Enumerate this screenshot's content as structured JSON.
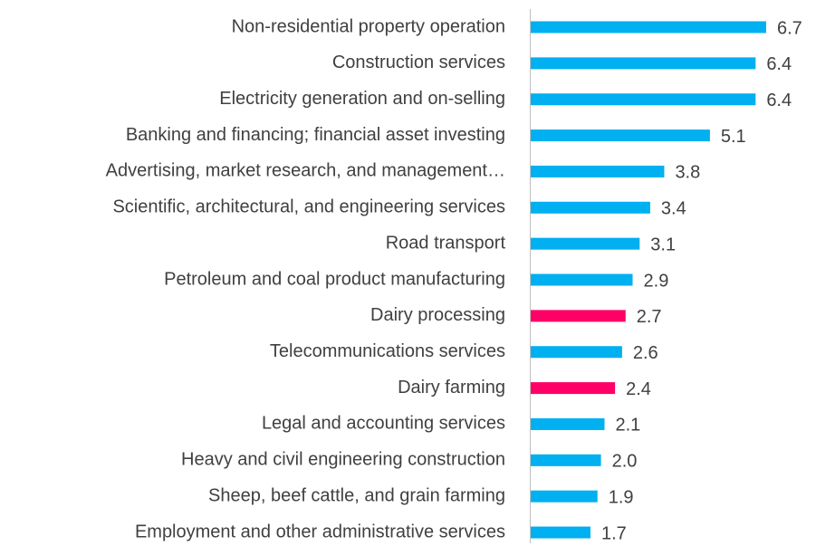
{
  "chart_data": {
    "type": "hbar",
    "categories": [
      "Non-residential property operation",
      "Construction services",
      "Electricity generation and on-selling",
      "Banking and financing; financial asset investing",
      "Advertising, market research, and management…",
      "Scientific, architectural, and engineering services",
      "Road transport",
      "Petroleum and coal product manufacturing",
      "Dairy processing",
      "Telecommunications services",
      "Dairy farming",
      "Legal and accounting services",
      "Heavy and civil engineering construction",
      "Sheep, beef cattle, and grain farming",
      "Employment and other administrative services"
    ],
    "values": [
      6.7,
      6.4,
      6.4,
      5.1,
      3.8,
      3.4,
      3.1,
      2.9,
      2.7,
      2.6,
      2.4,
      2.1,
      2.0,
      1.9,
      1.7
    ],
    "value_labels": [
      "6.7",
      "6.4",
      "6.4",
      "5.1",
      "3.8",
      "3.4",
      "3.1",
      "2.9",
      "2.7",
      "2.6",
      "2.4",
      "2.1",
      "2.0",
      "1.9",
      "1.7"
    ],
    "colors": [
      "#00b0f0",
      "#00b0f0",
      "#00b0f0",
      "#00b0f0",
      "#00b0f0",
      "#00b0f0",
      "#00b0f0",
      "#00b0f0",
      "#ff0066",
      "#00b0f0",
      "#ff0066",
      "#00b0f0",
      "#00b0f0",
      "#00b0f0",
      "#00b0f0"
    ]
  }
}
